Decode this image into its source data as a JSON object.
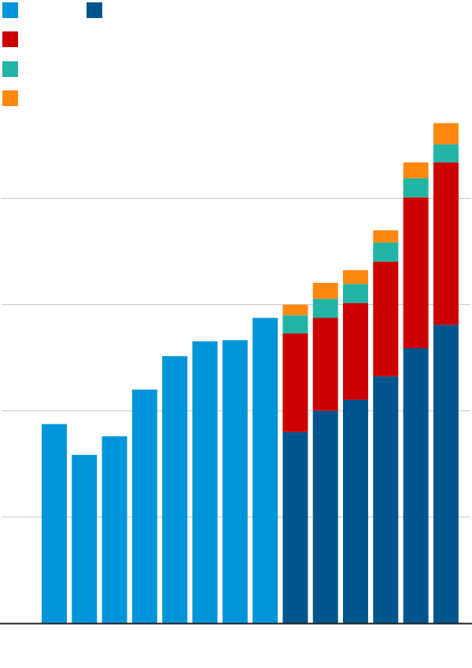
{
  "chart_data": {
    "type": "bar",
    "stacked": true,
    "title": "",
    "xlabel": "",
    "ylabel": "",
    "grid": true,
    "legend": "top-left",
    "ylim": [
      0,
      100
    ],
    "gridlines": [
      20,
      40,
      60,
      80
    ],
    "categories": [
      "",
      "",
      "",
      "",
      "",
      "",
      "",
      "",
      "",
      "",
      "",
      "",
      "",
      ""
    ],
    "series": [
      {
        "color": "#0095DA",
        "values": [
          37.5,
          31.7,
          35.2,
          44.0,
          50.3,
          53.1,
          53.3,
          57.5,
          0,
          0,
          0,
          0,
          0,
          0
        ]
      },
      {
        "color": "#00568C",
        "values": [
          0,
          0,
          0,
          0,
          0,
          0,
          0,
          0,
          36.0,
          40.0,
          42.1,
          46.5,
          51.8,
          56.2
        ]
      },
      {
        "color": "#CC0000",
        "values": [
          0,
          0,
          0,
          0,
          0,
          0,
          0,
          0,
          18.6,
          17.5,
          18.2,
          21.6,
          28.4,
          30.6
        ]
      },
      {
        "color": "#22B5A5",
        "values": [
          0,
          0,
          0,
          0,
          0,
          0,
          0,
          0,
          3.4,
          3.6,
          3.6,
          3.6,
          3.6,
          3.4
        ]
      },
      {
        "color": "#FF8811",
        "values": [
          0,
          0,
          0,
          0,
          0,
          0,
          0,
          0,
          2.0,
          3.0,
          2.6,
          2.3,
          3.0,
          4.0
        ]
      }
    ]
  }
}
